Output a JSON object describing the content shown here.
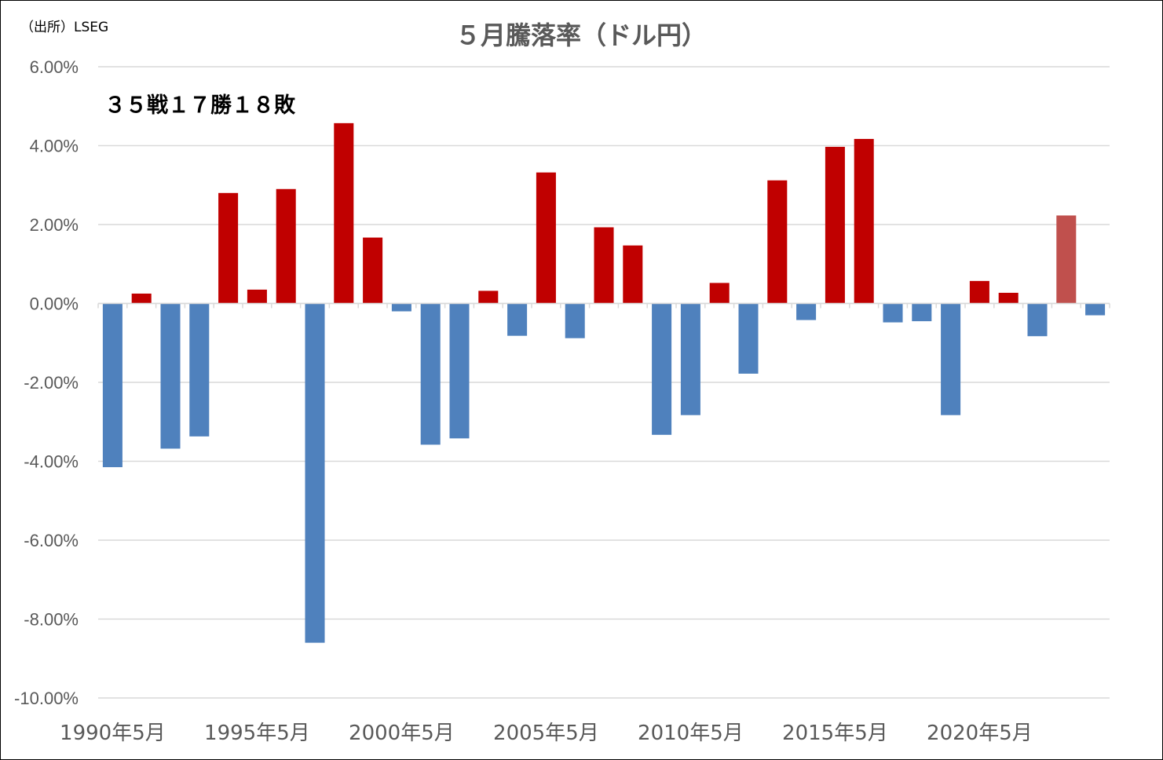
{
  "source_note": "（出所）LSEG",
  "annotation": "３５戦１７勝１８敗",
  "chart_data": {
    "type": "bar",
    "title": "５月騰落率（ドル円）",
    "xlabel": "",
    "ylabel": "",
    "ylim": [
      -10,
      6
    ],
    "yticks": [
      6,
      4,
      2,
      0,
      -2,
      -4,
      -6,
      -8,
      -10
    ],
    "ytick_labels": [
      "6.00%",
      "4.00%",
      "2.00%",
      "0.00%",
      "-2.00%",
      "-4.00%",
      "-6.00%",
      "-8.00%",
      "-10.00%"
    ],
    "xtick_labels": [
      "1990年5月",
      "1995年5月",
      "2000年5月",
      "2005年5月",
      "2010年5月",
      "2015年5月",
      "2020年5月"
    ],
    "xtick_every": 5,
    "grid": true,
    "legend": "none",
    "categories": [
      "1990",
      "1991",
      "1992",
      "1993",
      "1994",
      "1995",
      "1996",
      "1997",
      "1998",
      "1999",
      "2000",
      "2001",
      "2002",
      "2003",
      "2004",
      "2005",
      "2006",
      "2007",
      "2008",
      "2009",
      "2010",
      "2011",
      "2012",
      "2013",
      "2014",
      "2015",
      "2016",
      "2017",
      "2018",
      "2019",
      "2020",
      "2021",
      "2022",
      "2023",
      "2024"
    ],
    "values": [
      -4.15,
      0.25,
      -3.68,
      -3.37,
      2.8,
      0.35,
      2.9,
      -8.6,
      4.57,
      1.67,
      -0.2,
      -3.58,
      -3.42,
      0.32,
      -0.82,
      3.32,
      -0.88,
      1.93,
      1.47,
      -3.33,
      -2.83,
      0.52,
      -1.78,
      3.12,
      -0.42,
      3.97,
      4.17,
      -0.48,
      -0.45,
      -2.83,
      0.57,
      0.27,
      -0.83,
      2.23,
      -0.3
    ],
    "highlight_index": 33,
    "colors": {
      "positive": "#C00000",
      "negative": "#4F81BD",
      "highlight": "#C0504D",
      "grid": "#D9D9D9",
      "axis": "#D9D9D9"
    }
  }
}
